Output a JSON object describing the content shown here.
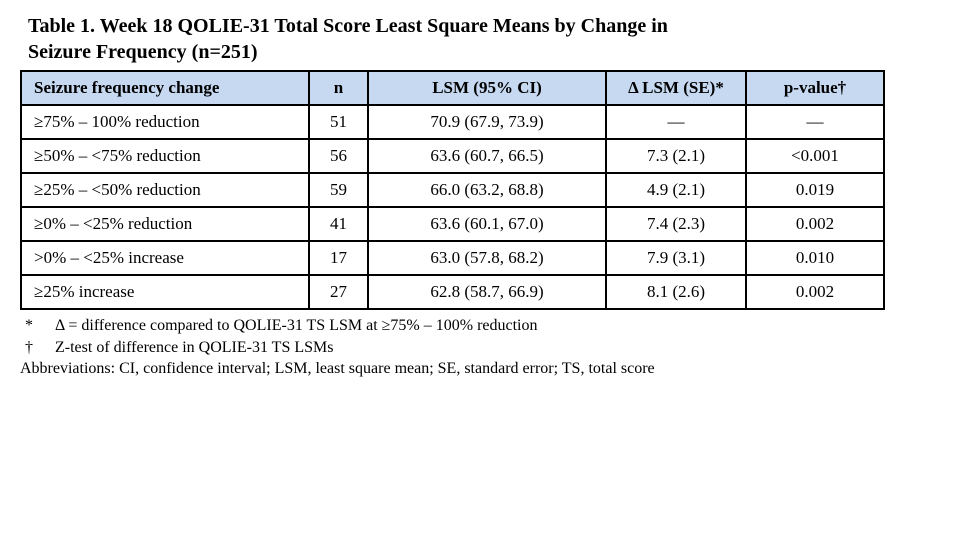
{
  "title": {
    "line1": "Table 1. Week 18 QOLIE-31 Total Score Least Square Means by Change in",
    "line2": "Seizure Frequency (n=251)"
  },
  "colors": {
    "header_bg": "#C6D9F1",
    "border": "#000000",
    "text": "#000000"
  },
  "table": {
    "columns": [
      "Seizure frequency change",
      "n",
      "LSM (95% CI)",
      "Δ LSM (SE)*",
      "p-value†"
    ],
    "rows": [
      [
        "≥75% – 100% reduction",
        "51",
        "70.9 (67.9, 73.9)",
        "—",
        "—"
      ],
      [
        "≥50% – <75% reduction",
        "56",
        "63.6 (60.7, 66.5)",
        "7.3 (2.1)",
        "<0.001"
      ],
      [
        "≥25% – <50% reduction",
        "59",
        "66.0 (63.2, 68.8)",
        "4.9 (2.1)",
        "0.019"
      ],
      [
        "≥0% – <25% reduction",
        "41",
        "63.6 (60.1, 67.0)",
        "7.4 (2.3)",
        "0.002"
      ],
      [
        ">0% – <25% increase",
        "17",
        "63.0 (57.8, 68.2)",
        "7.9 (3.1)",
        "0.010"
      ],
      [
        "≥25% increase",
        "27",
        "62.8 (58.7, 66.9)",
        "8.1 (2.6)",
        "0.002"
      ]
    ]
  },
  "footnotes": [
    {
      "marker": "*",
      "text": "Δ = difference compared to QOLIE-31 TS LSM at ≥75% – 100% reduction"
    },
    {
      "marker": "†",
      "text": "Z-test of difference in QOLIE-31 TS LSMs"
    }
  ],
  "abbreviations": "Abbreviations: CI, confidence interval; LSM, least square mean; SE, standard error; TS, total score"
}
